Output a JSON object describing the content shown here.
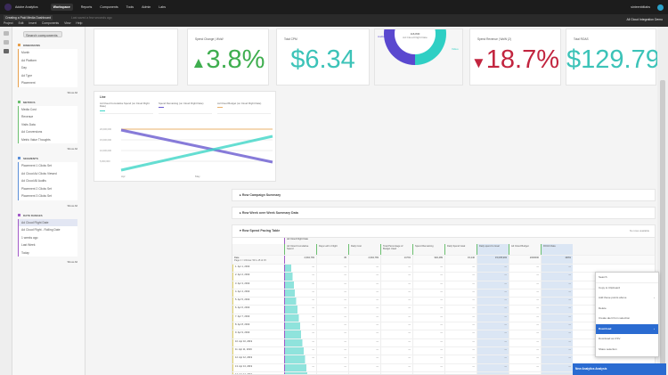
{
  "app": {
    "name": "Adobe Analytics",
    "nav": [
      "Workspace",
      "Reports",
      "Components",
      "Tools",
      "Admin",
      "Labs"
    ],
    "active": "Workspace",
    "user": "sixteenbitlabs"
  },
  "project": {
    "title": "Creating a Paid Media Dashboard",
    "subtitle": "Last saved a few seconds ago",
    "menu": [
      "Project",
      "Edit",
      "Insert",
      "Components",
      "View",
      "Help"
    ],
    "report_suite": "All Cloud Integration Demo"
  },
  "panel": {
    "search": "Search components",
    "sections": [
      {
        "title": "DIMENSIONS",
        "color": "#e8a04c",
        "items": [
          "Month",
          "Ad Platform",
          "Day",
          "Ad Type",
          "Placement"
        ],
        "show_all": "Show All"
      },
      {
        "title": "METRICS",
        "color": "#6cc070",
        "items": [
          "Media Cost",
          "Revenue",
          "Visits Data",
          "Ad Conversions",
          "Metric Value Thoughts"
        ],
        "show_all": "Show All"
      },
      {
        "title": "SEGMENTS",
        "color": "#5b8fd8",
        "items": [
          "Placement 1 Clicks Set",
          "Ad Cloud Ad Clicks Viewed",
          "Ad Cloud All Audits",
          "Placement 2 Clicks Set",
          "Placement 3 Clicks Set"
        ],
        "show_all": "Show All"
      },
      {
        "title": "DATE RANGES",
        "color": "#a35bc8",
        "items": [
          "Ad Cloud Flight Date",
          "Ad Cloud Flight - Rolling Date",
          "1 weeks ago",
          "Last Week",
          "Today"
        ],
        "show_all": "Show All",
        "selected": 0
      }
    ]
  },
  "cards": {
    "spend_change": {
      "label": "Spend Change | WoW",
      "value": "3.8%",
      "color": "#3fae4f"
    },
    "cpm": {
      "label": "Total CPM",
      "value": "$6.34",
      "color": "#3cc3b8"
    },
    "donut": {
      "value": "116,830",
      "caption": "Ad Cloud Flight Date",
      "left": "Audio",
      "right": "Video",
      "share": 0.5
    },
    "spend_revenue": {
      "label": "Spend Revenue | WoW (2)",
      "value": "18.7%",
      "color": "#c2253f"
    },
    "roas": {
      "label": "Total ROAS",
      "value": "$129.79",
      "color": "#3cc3b8"
    }
  },
  "line": {
    "title": "Line",
    "legend": [
      {
        "name": "Ad Cloud Cumulative Spend (on Cloud Flight Date)",
        "color": "#3fd6c8"
      },
      {
        "name": "Spend Remaining (on Cloud Flight Date)",
        "color": "#6a5bd0"
      },
      {
        "name": "Ad Cloud Budget (on Cloud Flight Date)",
        "color": "#e8b06a"
      }
    ],
    "x_ticks": [
      "Apr",
      "May"
    ],
    "y_ticks": [
      "20,000,000",
      "15,000,000",
      "10,000,000",
      "5,000,000"
    ]
  },
  "rows": {
    "campaign": "Row Campaign Summary",
    "wow": "Row Week over Week Summary Data",
    "pacing": "Row Spend Pacing Table",
    "pacing_note": "No rows available"
  },
  "table": {
    "dim_header": "Date",
    "dim_sub": "Page 1 / 1  Rows: 50  1-15 of 15",
    "segment": "Ad Cloud Flight Date",
    "columns": [
      "Ad Cloud Cumulative Spend",
      "Days Left in Flight",
      "Daily Cost",
      "Total Percentage of Budget Used",
      "Spend Remaining",
      "Daily Spend Goal",
      "Daily spend to Goal",
      "Ad Cloud Budget",
      "ROAS Data"
    ],
    "totals": [
      "2,694,783",
      "45",
      "2,694,783",
      "13.5%",
      "992,489",
      "15,240",
      "15,035,993",
      "2000000",
      "100%"
    ],
    "dates": [
      "Apr 1, 2019",
      "Apr 2, 2019",
      "Apr 3, 2019",
      "Apr 4, 2019",
      "Apr 5, 2019",
      "Apr 6, 2019",
      "Apr 7, 2019",
      "Apr 8, 2019",
      "Apr 9, 2019",
      "Apr 10, 2019",
      "Apr 11, 2019",
      "Apr 12, 2019",
      "Apr 13, 2019",
      "Apr 14, 2019",
      "Apr 15, 2019"
    ]
  },
  "context_menu": {
    "search": "Search",
    "items": [
      "Copy to Clipboard",
      "Add these points above",
      "Delete",
      "Create alert from selection",
      "Download",
      "Download as CSV",
      "Share selection"
    ],
    "highlighted": 4
  },
  "toast": "New Analytics Analysis"
}
